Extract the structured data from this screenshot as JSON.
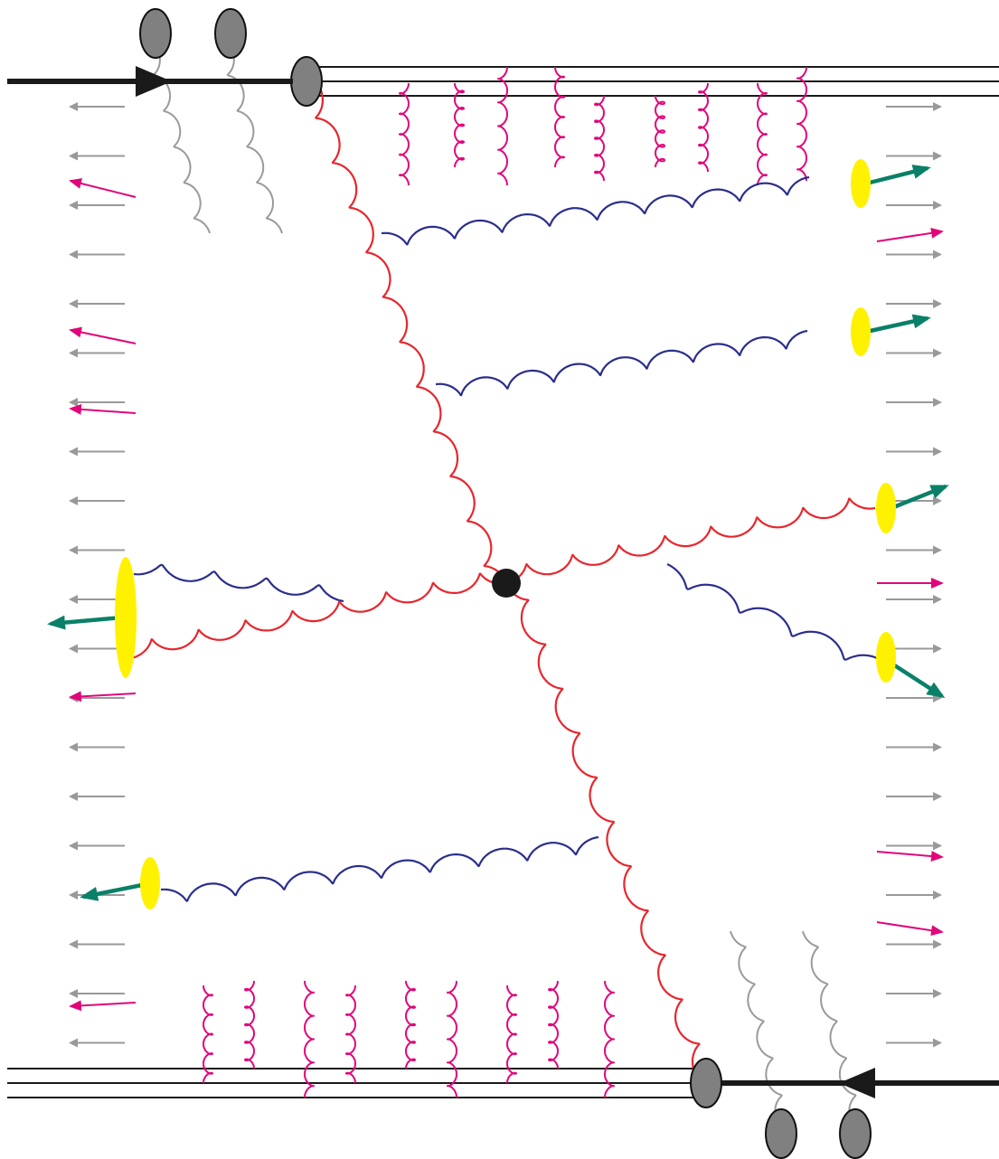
{
  "diagram": {
    "description_visible_text": "",
    "colors": {
      "background": "#ffffff",
      "beam_line": "#1a1a1a",
      "beam_remnant_lines": "#1a1a1a",
      "hard_vertex": "#1a1a1a",
      "hard_gluons": "#e8262d",
      "soft_gluons": "#2b2e8c",
      "underlying_event_gluons": "#e0067a",
      "spectator_gluons": "#9a9a9a",
      "partons_blobs": "#808080",
      "hadron_clusters": "#fff200",
      "hadron_arrows": "#0a8068",
      "remnant_arrows_gray": "#999999",
      "remnant_arrows_magenta": "#e0067a"
    },
    "elements": {
      "incoming_top_beam": "arrow",
      "incoming_bottom_beam": "arrow",
      "hard_scatter_vertex": "filled-circle",
      "parton_blobs": "ellipse",
      "hadronization_clusters": "ellipse",
      "final_state_hadrons": "arrow"
    }
  }
}
